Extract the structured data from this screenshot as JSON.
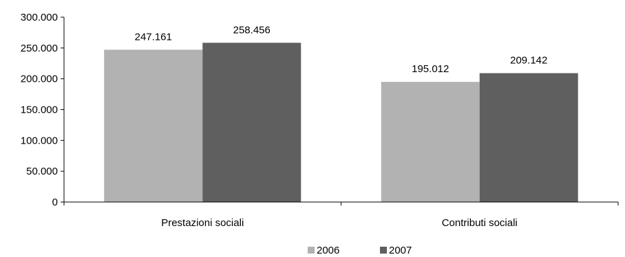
{
  "chart_data": {
    "type": "bar",
    "title": "",
    "xlabel": "",
    "ylabel": "",
    "categories": [
      "Prestazioni sociali",
      "Contributi sociali"
    ],
    "series": [
      {
        "name": "2006",
        "values": [
          247161,
          195012
        ],
        "labels": [
          "247.161",
          "195.012"
        ],
        "color": "#b2b2b2"
      },
      {
        "name": "2007",
        "values": [
          258456,
          209142
        ],
        "labels": [
          "258.456",
          "209.142"
        ],
        "color": "#5f5f5f"
      }
    ],
    "ylim": [
      0,
      300000
    ],
    "yticks": [
      0,
      50000,
      100000,
      150000,
      200000,
      250000,
      300000
    ],
    "ytick_labels": [
      "0",
      "50.000",
      "100.000",
      "150.000",
      "200.000",
      "250.000",
      "300.000"
    ],
    "grid": false,
    "legend_position": "bottom-center"
  }
}
